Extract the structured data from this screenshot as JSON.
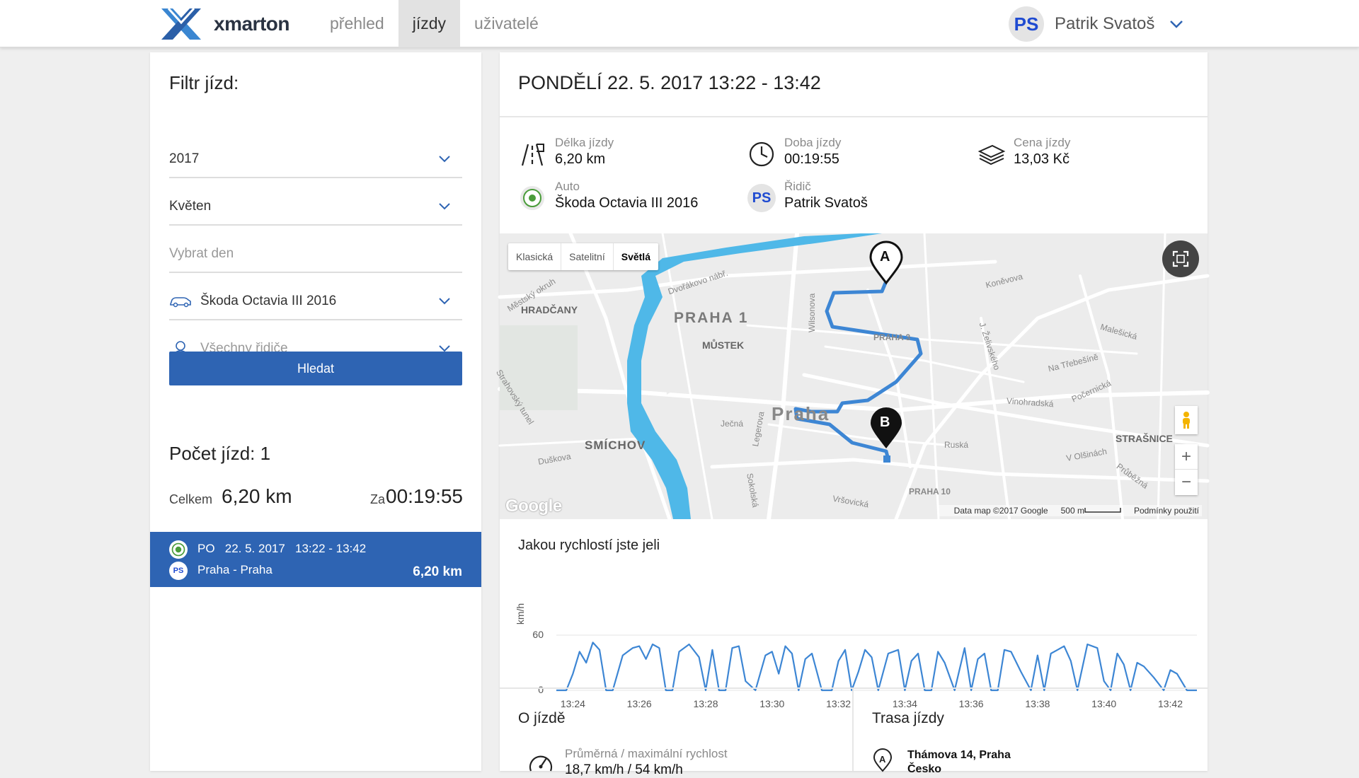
{
  "app": {
    "brand": "xmarton"
  },
  "nav": {
    "items": [
      "přehled",
      "jízdy",
      "uživatelé"
    ],
    "active": "jízdy"
  },
  "user": {
    "initials": "PS",
    "name": "Patrik Svatoš"
  },
  "filter": {
    "title": "Filtr jízd:",
    "year": "2017",
    "month": "Květen",
    "day_placeholder": "Vybrat den",
    "car": "Škoda Octavia III 2016",
    "driver_placeholder": "Všechny řidiče",
    "search_label": "Hledat"
  },
  "summary": {
    "count_label": "Počet jízd: 1",
    "total_label": "Celkem",
    "total_value": "6,20 km",
    "time_label": "Za",
    "time_value": "00:19:55"
  },
  "trips": [
    {
      "day": "PO",
      "date": "22. 5. 2017",
      "time": "13:22 - 13:42",
      "route": "Praha - Praha",
      "distance": "6,20 km",
      "driver_initials": "PS"
    }
  ],
  "detail": {
    "title": "PONDĚLÍ  22. 5. 2017  13:22 - 13:42",
    "distance_label": "Délka jízdy",
    "distance_value": "6,20 km",
    "duration_label": "Doba jízdy",
    "duration_value": "00:19:55",
    "price_label": "Cena jízdy",
    "price_value": "13,03 Kč",
    "car_label": "Auto",
    "car_value": "Škoda Octavia III 2016",
    "driver_label": "Řidič",
    "driver_value": "Patrik Svatoš",
    "driver_initials": "PS"
  },
  "map": {
    "types": [
      "Klasická",
      "Satelitní",
      "Světlá"
    ],
    "selected_type": "Světlá",
    "marker_start": "A",
    "marker_end": "B",
    "zoom_in": "+",
    "zoom_out": "−",
    "attribution": "Data map ©2017 Google",
    "scale": "500 m",
    "terms": "Podmínky použití",
    "google": "Google",
    "labels": {
      "hradcany": "HRADČANY",
      "praha1": "PRAHA 1",
      "mustek": "MŮSTEK",
      "praha": "Praha",
      "smichov": "SMÍCHOV",
      "strasnice": "STRAŠNICE",
      "praha3": "PRAHA 3",
      "praha10": "PRAHA 10",
      "wilsonova": "Wilsonova",
      "konevova": "Koněvova",
      "vinohradska": "Vinohradská",
      "ruska": "Ruská",
      "vrsovicka": "Vršovická",
      "jecna": "Ječná",
      "legerova": "Legerova",
      "sokolska": "Sokolská",
      "duskova": "Duškova",
      "strahovsky": "Strahovský tunel",
      "mestsky": "Městský okruh",
      "dvorakovo": "Dvořákovo nábř.",
      "malesicka": "Malešická",
      "natrebesine": "Na Třebešíně",
      "pocernicka": "Počernická",
      "volsinach": "V Olšinách",
      "prubezna": "Průběžná",
      "zelivskeho": "J. Želivského"
    }
  },
  "speed": {
    "title": "Jakou rychlostí jste jeli",
    "y_label": "km/h",
    "y_ticks": [
      "0",
      "60"
    ],
    "x_ticks": [
      "13:24",
      "13:26",
      "13:28",
      "13:30",
      "13:32",
      "13:34",
      "13:36",
      "13:38",
      "13:40",
      "13:42"
    ]
  },
  "chart_data": {
    "type": "line",
    "title": "Jakou rychlostí jste jeli",
    "xlabel": "",
    "ylabel": "km/h",
    "ylim": [
      0,
      60
    ],
    "x_range_minutes": [
      23.5,
      42.8
    ],
    "x_ticks": [
      "13:24",
      "13:26",
      "13:28",
      "13:30",
      "13:32",
      "13:34",
      "13:36",
      "13:38",
      "13:40",
      "13:42"
    ],
    "x": [
      23.5,
      23.8,
      24.0,
      24.2,
      24.4,
      24.6,
      24.8,
      25.0,
      25.2,
      25.5,
      25.8,
      26.0,
      26.2,
      26.4,
      26.6,
      26.8,
      27.0,
      27.2,
      27.5,
      27.8,
      28.0,
      28.2,
      28.4,
      28.6,
      28.8,
      29.0,
      29.2,
      29.5,
      29.8,
      30.0,
      30.2,
      30.4,
      30.6,
      30.8,
      31.0,
      31.2,
      31.5,
      31.8,
      32.0,
      32.2,
      32.4,
      32.6,
      32.8,
      33.0,
      33.2,
      33.5,
      33.8,
      34.0,
      34.2,
      34.4,
      34.6,
      34.8,
      35.0,
      35.2,
      35.5,
      35.8,
      36.0,
      36.2,
      36.4,
      36.6,
      36.8,
      37.0,
      37.2,
      37.5,
      37.8,
      38.0,
      38.2,
      38.4,
      38.6,
      38.8,
      39.0,
      39.2,
      39.5,
      39.8,
      40.0,
      40.2,
      40.4,
      40.6,
      40.8,
      41.0,
      41.2,
      41.5,
      41.8,
      42.0,
      42.2,
      42.5,
      42.8
    ],
    "values": [
      0,
      0,
      18,
      42,
      30,
      52,
      44,
      0,
      0,
      38,
      46,
      48,
      34,
      50,
      46,
      0,
      0,
      42,
      50,
      36,
      0,
      44,
      0,
      0,
      46,
      48,
      10,
      0,
      38,
      42,
      18,
      48,
      40,
      0,
      34,
      40,
      0,
      0,
      32,
      44,
      0,
      20,
      44,
      36,
      0,
      40,
      44,
      0,
      32,
      40,
      0,
      0,
      42,
      30,
      0,
      46,
      0,
      34,
      40,
      0,
      0,
      44,
      42,
      20,
      0,
      38,
      0,
      40,
      44,
      48,
      32,
      0,
      50,
      46,
      10,
      0,
      40,
      28,
      0,
      30,
      26,
      14,
      0,
      22,
      18,
      0,
      0
    ]
  },
  "about": {
    "title": "O jízdě",
    "speed_label": "Průměrná / maximální rychlost",
    "speed_value": "18,7 km/h  /  54 km/h"
  },
  "route": {
    "title": "Trasa jízdy",
    "start_marker": "A",
    "start_address": "Thámova 14, Praha",
    "start_country": "Česko"
  }
}
